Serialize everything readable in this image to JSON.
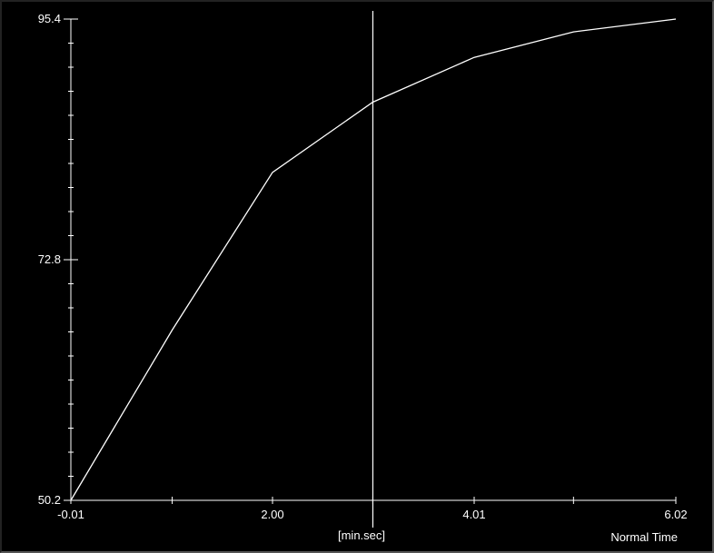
{
  "chart_data": {
    "type": "line",
    "title": "",
    "xlabel": "[min.sec]",
    "mode_label": "Normal Time",
    "x": [
      -0.01,
      1.0,
      2.0,
      3.0,
      4.01,
      5.0,
      6.02
    ],
    "values": [
      50.2,
      66.2,
      81.0,
      87.6,
      91.8,
      94.2,
      95.4
    ],
    "xlim": [
      -0.01,
      6.02
    ],
    "ylim": [
      50.2,
      95.4
    ],
    "x_ticks": [
      -0.01,
      1.0,
      2.0,
      3.0,
      4.01,
      5.0,
      6.02
    ],
    "x_tick_labels": [
      {
        "value": -0.01,
        "text": "-0.01"
      },
      {
        "value": 2.0,
        "text": "2.00"
      },
      {
        "value": 4.01,
        "text": "4.01"
      },
      {
        "value": 6.02,
        "text": "6.02"
      }
    ],
    "y_tick_labels": [
      {
        "value": 95.4,
        "text": "95.4"
      },
      {
        "value": 72.8,
        "text": "72.8"
      },
      {
        "value": 50.2,
        "text": "50.2"
      }
    ],
    "y_minor_ticks": 20,
    "cursor_x": 3.0,
    "grid": false,
    "colors": {
      "background": "#000000",
      "line": "#ffffff",
      "axis": "#ffffff"
    }
  }
}
